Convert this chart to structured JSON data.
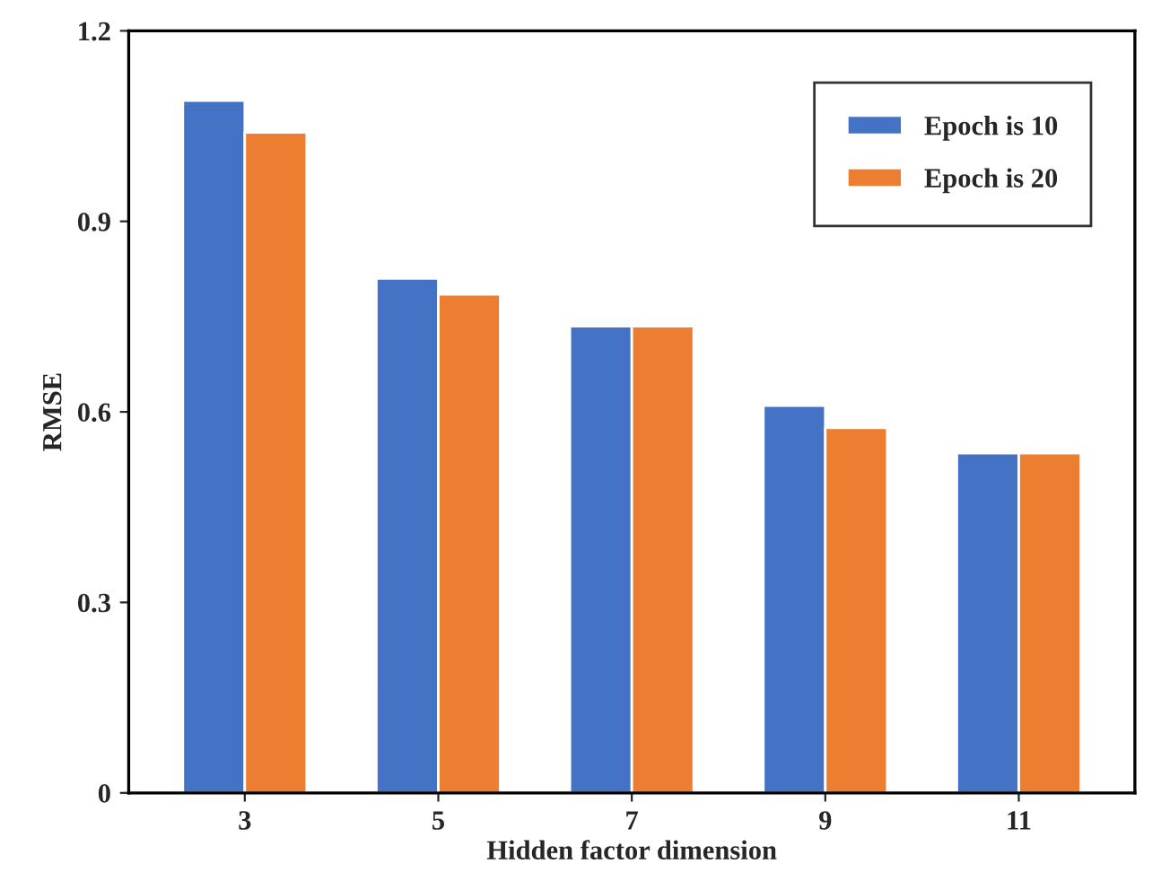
{
  "chart_data": {
    "type": "bar",
    "xlabel": "Hidden factor dimension",
    "ylabel": "RMSE",
    "categories": [
      "3",
      "5",
      "7",
      "9",
      "11"
    ],
    "series": [
      {
        "name": "Epoch is 10",
        "color": "#4472c4",
        "values": [
          1.09,
          0.81,
          0.735,
          0.61,
          0.535
        ]
      },
      {
        "name": "Epoch is 20",
        "color": "#ed7d31",
        "values": [
          1.04,
          0.785,
          0.735,
          0.575,
          0.535
        ]
      }
    ],
    "ylim": [
      0,
      1.2
    ],
    "yticks": [
      0,
      0.3,
      0.6,
      0.9,
      1.2
    ],
    "grid": false,
    "legend": "top right"
  }
}
